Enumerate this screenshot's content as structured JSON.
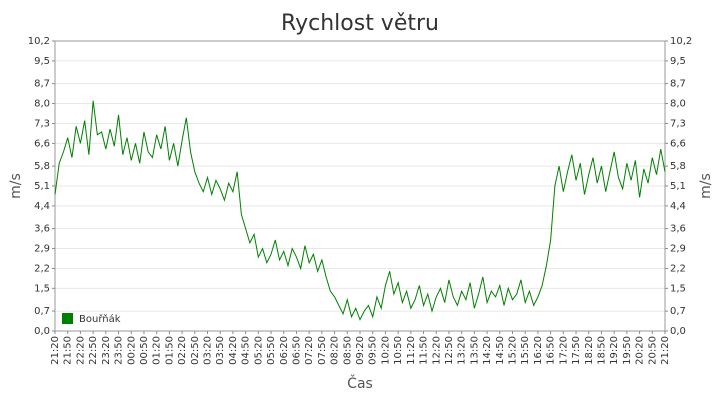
{
  "chart_data": {
    "type": "line",
    "title": "Rychlost větru",
    "x_label": "Čas",
    "y_label": "m/s",
    "categories": [
      "21:20",
      null,
      null,
      "21:50",
      null,
      null,
      "22:20",
      null,
      null,
      "22:50",
      null,
      null,
      "23:20",
      null,
      null,
      "23:50",
      null,
      null,
      "00:20",
      null,
      null,
      "00:50",
      null,
      null,
      "01:20",
      null,
      null,
      "01:50",
      null,
      null,
      "02:20",
      null,
      null,
      "02:50",
      null,
      null,
      "03:20",
      null,
      null,
      "03:50",
      null,
      null,
      "04:20",
      null,
      null,
      "04:50",
      null,
      null,
      "05:20",
      null,
      null,
      "05:50",
      null,
      null,
      "06:20",
      null,
      null,
      "06:50",
      null,
      null,
      "07:20",
      null,
      null,
      "07:50",
      null,
      null,
      "08:20",
      null,
      null,
      "08:50",
      null,
      null,
      "09:20",
      null,
      null,
      "09:50",
      null,
      null,
      "10:20",
      null,
      null,
      "10:50",
      null,
      null,
      "11:20",
      null,
      null,
      "11:50",
      null,
      null,
      "12:20",
      null,
      null,
      "12:50",
      null,
      null,
      "13:20",
      null,
      null,
      "13:50",
      null,
      null,
      "14:20",
      null,
      null,
      "14:50",
      null,
      null,
      "15:20",
      null,
      null,
      "15:50",
      null,
      null,
      "16:20",
      null,
      null,
      "16:50",
      null,
      null,
      "17:20",
      null,
      null,
      "17:50",
      null,
      null,
      "18:20",
      null,
      null,
      "18:50",
      null,
      null,
      "19:20",
      null,
      null,
      "19:50",
      null,
      null,
      "20:20",
      null,
      null,
      "20:50",
      null,
      null,
      "21:20"
    ],
    "series": [
      {
        "name": "Bouřňák",
        "color": "#008000",
        "values": [
          4.8,
          5.9,
          6.3,
          6.8,
          6.1,
          7.2,
          6.6,
          7.4,
          6.2,
          8.1,
          6.9,
          7.0,
          6.4,
          7.1,
          6.5,
          7.6,
          6.2,
          6.8,
          6.0,
          6.6,
          5.9,
          7.0,
          6.3,
          6.1,
          6.9,
          6.4,
          7.2,
          6.0,
          6.6,
          5.8,
          6.7,
          7.5,
          6.3,
          5.6,
          5.2,
          4.9,
          5.4,
          4.8,
          5.3,
          5.0,
          4.6,
          5.2,
          4.9,
          5.6,
          4.1,
          3.6,
          3.1,
          3.4,
          2.6,
          2.9,
          2.4,
          2.7,
          3.2,
          2.5,
          2.8,
          2.3,
          2.9,
          2.6,
          2.2,
          3.0,
          2.4,
          2.7,
          2.1,
          2.5,
          1.9,
          1.4,
          1.2,
          0.9,
          0.6,
          1.1,
          0.5,
          0.8,
          0.4,
          0.7,
          0.9,
          0.5,
          1.2,
          0.8,
          1.6,
          2.1,
          1.3,
          1.7,
          1.0,
          1.4,
          0.8,
          1.1,
          1.6,
          0.9,
          1.3,
          0.7,
          1.2,
          1.5,
          1.0,
          1.8,
          1.2,
          0.9,
          1.4,
          1.1,
          1.7,
          0.8,
          1.3,
          1.9,
          1.0,
          1.4,
          1.2,
          1.6,
          0.9,
          1.5,
          1.1,
          1.3,
          1.8,
          1.0,
          1.4,
          0.9,
          1.2,
          1.6,
          2.3,
          3.2,
          5.1,
          5.8,
          4.9,
          5.6,
          6.2,
          5.3,
          5.9,
          4.8,
          5.5,
          6.1,
          5.2,
          5.8,
          4.9,
          5.6,
          6.3,
          5.4,
          5.0,
          5.9,
          5.3,
          6.0,
          4.7,
          5.7,
          5.2,
          6.1,
          5.5,
          6.4,
          5.6
        ]
      }
    ],
    "ylim": [
      0,
      10.2
    ],
    "yticks": [
      {
        "value": 0,
        "label": "0,0"
      },
      {
        "value": 0.7,
        "label": "0,7"
      },
      {
        "value": 1.5,
        "label": "1,5"
      },
      {
        "value": 2.2,
        "label": "2,2"
      },
      {
        "value": 2.9,
        "label": "2,9"
      },
      {
        "value": 3.6,
        "label": "3,6"
      },
      {
        "value": 4.4,
        "label": "4,4"
      },
      {
        "value": 5.1,
        "label": "5,1"
      },
      {
        "value": 5.8,
        "label": "5,8"
      },
      {
        "value": 6.6,
        "label": "6,6"
      },
      {
        "value": 7.3,
        "label": "7,3"
      },
      {
        "value": 8.0,
        "label": "8,0"
      },
      {
        "value": 8.7,
        "label": "8,7"
      },
      {
        "value": 9.5,
        "label": "9,5"
      },
      {
        "value": 10.2,
        "label": "10,2"
      }
    ],
    "grid": true,
    "legend": "lower left"
  }
}
